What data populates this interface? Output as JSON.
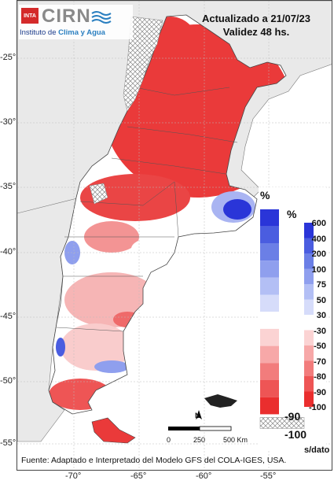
{
  "map": {
    "updated": "Actualizado a 21/07/23",
    "validity": "Validez 48 hs.",
    "source": "Fuente: Adaptado e Interpretado del Modelo GFS del COLA-IGES, USA."
  },
  "logo": {
    "inta": "INTA",
    "cirn": "CIRN",
    "institute_prefix": "Instituto de ",
    "institute_bold": "Clima y Agua"
  },
  "axes": {
    "lat_ticks": [
      "-25°",
      "-30°",
      "-35°",
      "-40°",
      "-45°",
      "-50°",
      "-55°"
    ],
    "lon_ticks": [
      "-70°",
      "-65°",
      "-60°",
      "-55°"
    ]
  },
  "legend_left": {
    "unit": "%",
    "colors": [
      "#2a35d8",
      "#4a5de0",
      "#6b7fe6",
      "#8f9fee",
      "#b3bff5",
      "#d6dcfa",
      "#ffffff",
      "#fbd3d3",
      "#f7a8a8",
      "#f27c7c",
      "#ee5555",
      "#ea2e2e"
    ],
    "labels": [
      "-90",
      "-100"
    ],
    "nodata_label": "s/dato"
  },
  "legend_right": {
    "unit": "%",
    "colors": [
      "#2a35d8",
      "#4a5de0",
      "#6b7fe6",
      "#8f9fee",
      "#b3bff5",
      "#d6dcfa",
      "#ffffff",
      "#fbd3d3",
      "#f7a8a8",
      "#f27c7c",
      "#ee5555",
      "#ea2e2e"
    ],
    "labels": [
      "600",
      "400",
      "200",
      "100",
      "75",
      "50",
      "30",
      "-30",
      "-50",
      "-70",
      "-80",
      "-90",
      "-100"
    ]
  },
  "scale": {
    "labels": [
      "0",
      "250",
      "500 Km"
    ],
    "north": "N"
  },
  "colors": {
    "deficit_strong": "#ea3a3a",
    "deficit_light": "#f6b0b0",
    "excess_strong": "#2a35d8",
    "excess_light": "#a9b4f2",
    "land": "#e9e9e9",
    "ocean": "#ffffff"
  }
}
